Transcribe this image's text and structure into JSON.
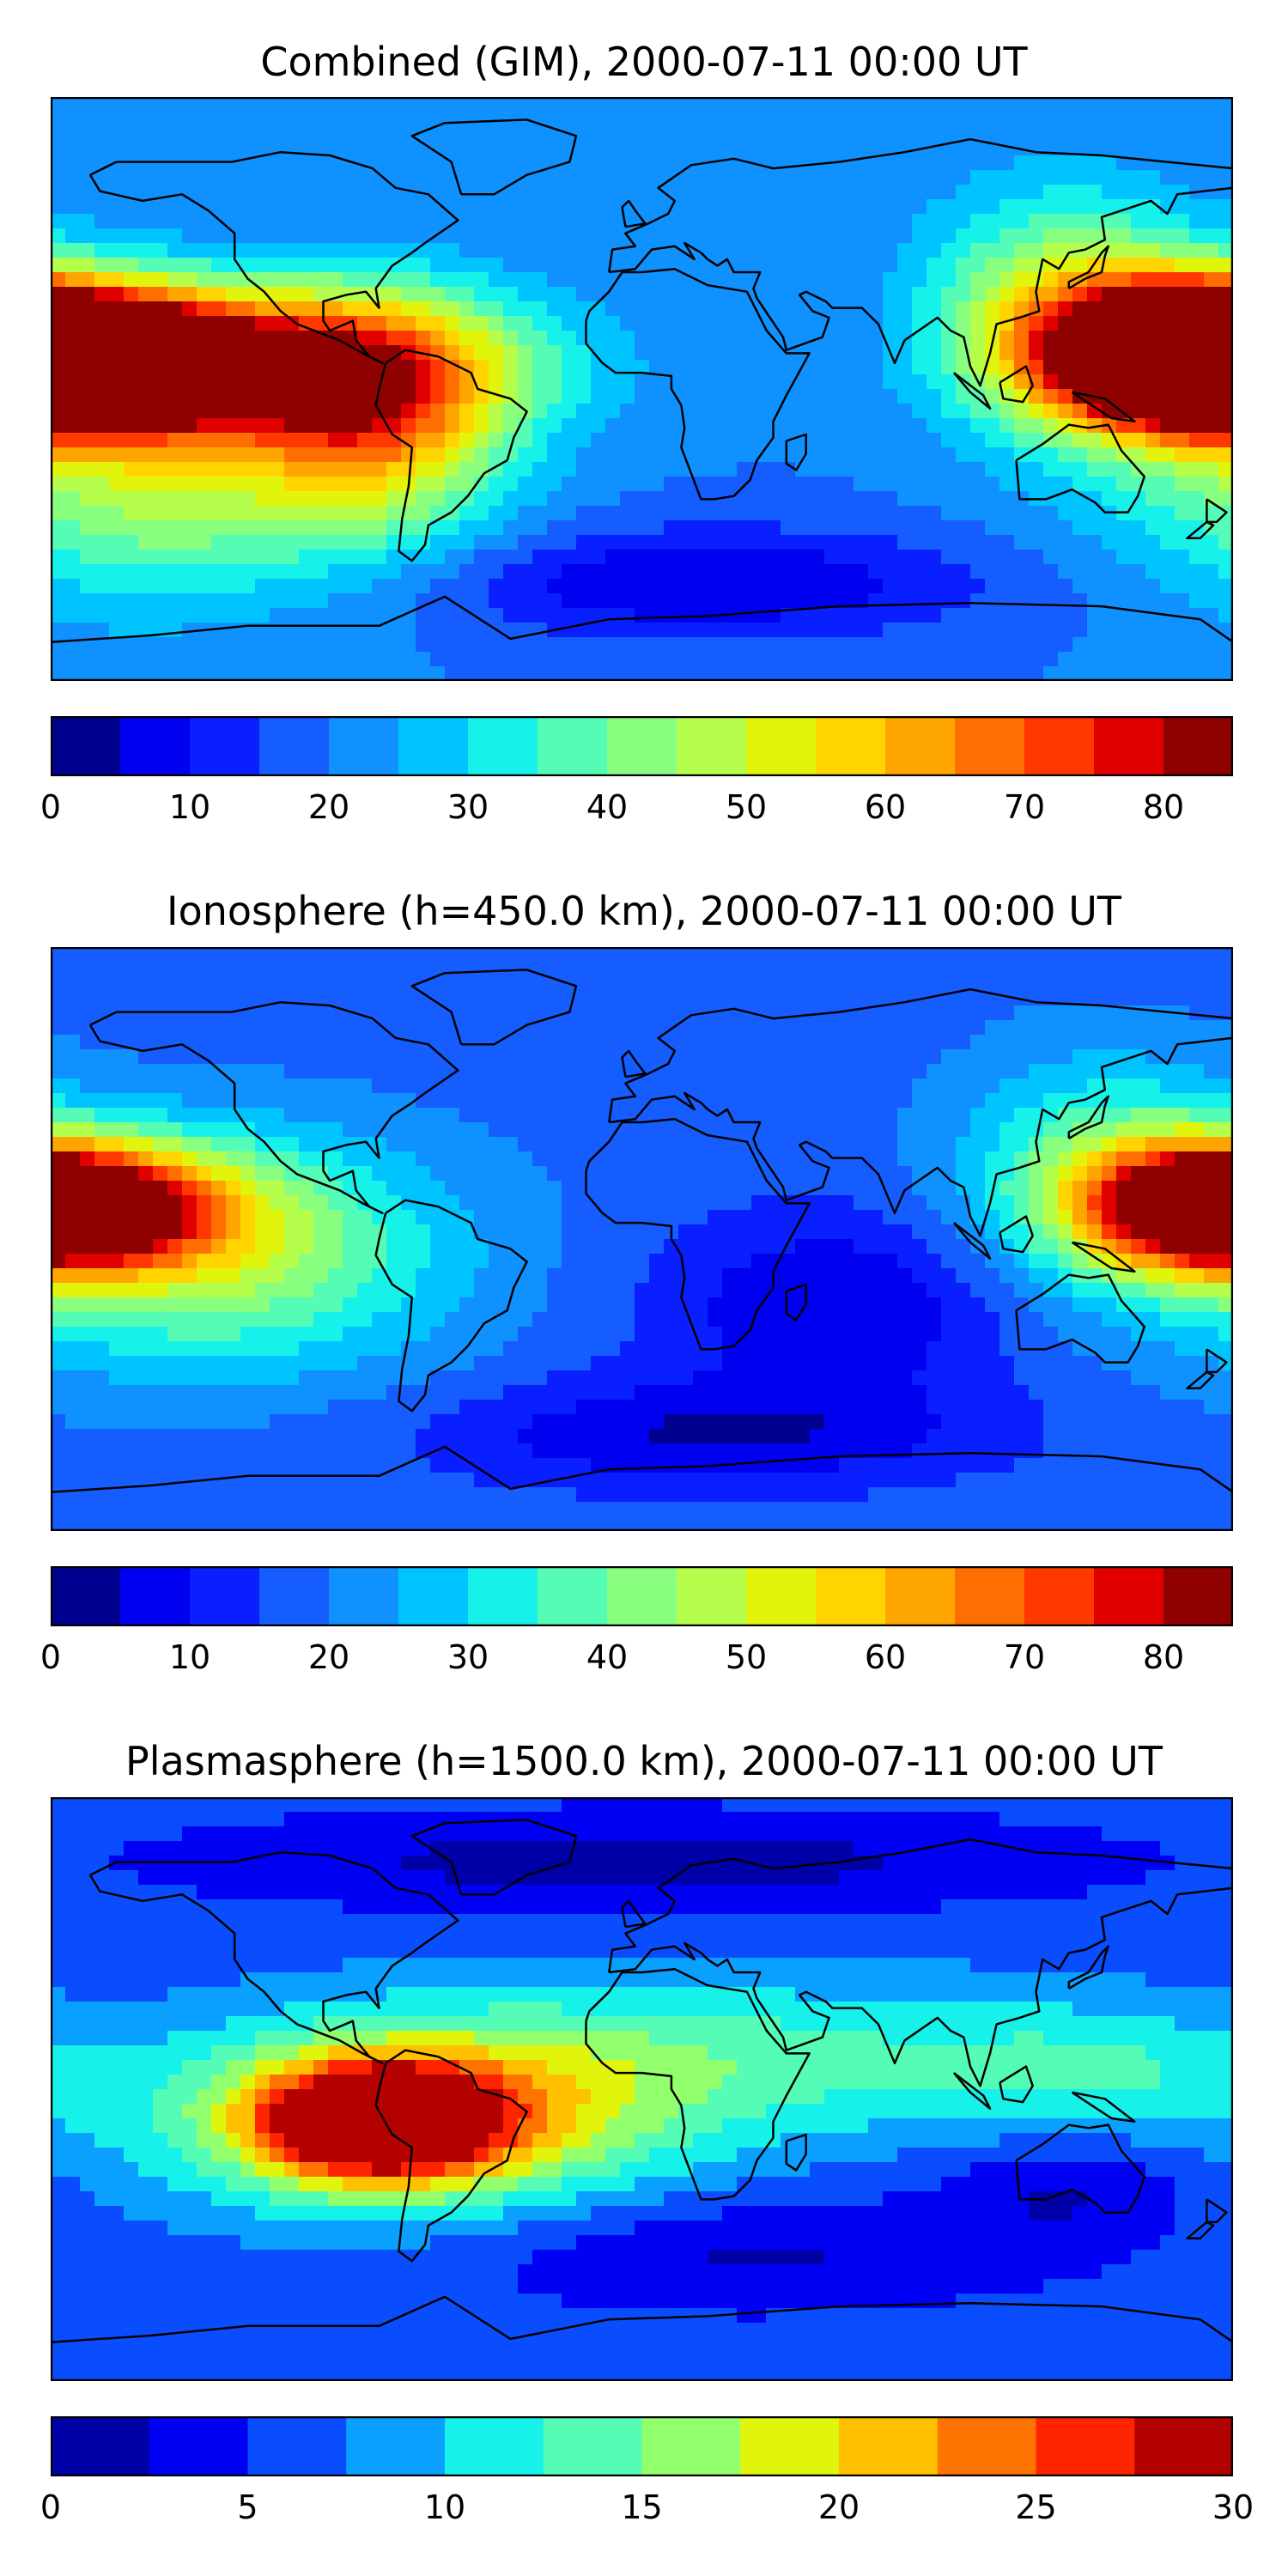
{
  "colors": {
    "jet17": [
      "#00008f",
      "#0000f0",
      "#0a1fff",
      "#155dff",
      "#0f91ff",
      "#00c4ff",
      "#16f2ea",
      "#54fcb5",
      "#88ff7f",
      "#b5ff4c",
      "#e0f50b",
      "#ffd400",
      "#ffa500",
      "#ff6e00",
      "#ff3800",
      "#e00000",
      "#8f0000"
    ],
    "jet12": [
      "#0000a8",
      "#0000f5",
      "#0a4dff",
      "#0aa0ff",
      "#16f2ea",
      "#54fcb5",
      "#92ff6c",
      "#e0f50b",
      "#ffc000",
      "#ff7400",
      "#ff2400",
      "#b30000"
    ],
    "coastline": "#000000"
  },
  "chart_data": [
    {
      "type": "heatmap",
      "title": "Combined (GIM), 2000-07-11 00:00 UT",
      "colorbar": {
        "levels": [
          0,
          5,
          10,
          15,
          20,
          25,
          30,
          35,
          40,
          45,
          50,
          55,
          60,
          65,
          70,
          75,
          80,
          85
        ],
        "tick_labels": [
          "0",
          "10",
          "20",
          "30",
          "40",
          "50",
          "60",
          "70",
          "80"
        ],
        "tick_values": [
          0,
          10,
          20,
          30,
          40,
          50,
          60,
          70,
          80
        ]
      },
      "background_level": 20,
      "features": [
        {
          "lon": -180,
          "lat": 10,
          "value": 84,
          "sx": 35,
          "sy": 14
        },
        {
          "lon": -120,
          "lat": 8,
          "value": 70,
          "sx": 55,
          "sy": 16
        },
        {
          "lon": -80,
          "lat": -10,
          "value": 55,
          "sx": 28,
          "sy": 25
        },
        {
          "lon": 170,
          "lat": 10,
          "value": 74,
          "sx": 30,
          "sy": 16
        },
        {
          "lon": 130,
          "lat": 25,
          "value": 48,
          "sx": 30,
          "sy": 25
        },
        {
          "lon": -150,
          "lat": -30,
          "value": 45,
          "sx": 45,
          "sy": 25
        },
        {
          "lon": 20,
          "lat": -60,
          "value": 5,
          "sx": 60,
          "sy": 12
        }
      ]
    },
    {
      "type": "heatmap",
      "title": "Ionosphere  (h=450.0 km), 2000-07-11 00:00 UT",
      "colorbar": {
        "levels": [
          0,
          5,
          10,
          15,
          20,
          25,
          30,
          35,
          40,
          45,
          50,
          55,
          60,
          65,
          70,
          75,
          80,
          85
        ],
        "tick_labels": [
          "0",
          "10",
          "20",
          "30",
          "40",
          "50",
          "60",
          "70",
          "80"
        ],
        "tick_values": [
          0,
          10,
          20,
          30,
          40,
          50,
          60,
          70,
          80
        ]
      },
      "background_level": 18,
      "features": [
        {
          "lon": -170,
          "lat": 10,
          "value": 62,
          "sx": 35,
          "sy": 14
        },
        {
          "lon": -130,
          "lat": -5,
          "value": 45,
          "sx": 50,
          "sy": 25
        },
        {
          "lon": 175,
          "lat": 10,
          "value": 66,
          "sx": 25,
          "sy": 13
        },
        {
          "lon": 140,
          "lat": 20,
          "value": 38,
          "sx": 30,
          "sy": 25
        },
        {
          "lon": 60,
          "lat": -20,
          "value": 5,
          "sx": 40,
          "sy": 20
        },
        {
          "lon": 20,
          "lat": -60,
          "value": 5,
          "sx": 60,
          "sy": 12
        }
      ]
    },
    {
      "type": "heatmap",
      "title": "Plasmasphere (h=1500.0 km), 2000-07-11 00:00 UT",
      "colorbar": {
        "levels": [
          0,
          2.5,
          5,
          7.5,
          10,
          12.5,
          15,
          17.5,
          20,
          22.5,
          25,
          27.5,
          30
        ],
        "tick_labels": [
          "0",
          "5",
          "10",
          "15",
          "20",
          "25",
          "30"
        ],
        "tick_values": [
          0,
          5,
          10,
          15,
          20,
          25,
          30
        ]
      },
      "background_level": 6,
      "features": [
        {
          "lon": -80,
          "lat": -10,
          "value": 29,
          "sx": 25,
          "sy": 12
        },
        {
          "lon": -70,
          "lat": -10,
          "value": 20,
          "sx": 55,
          "sy": 20
        },
        {
          "lon": 20,
          "lat": 10,
          "value": 13,
          "sx": 80,
          "sy": 18
        },
        {
          "lon": 140,
          "lat": 5,
          "value": 11,
          "sx": 40,
          "sy": 15
        },
        {
          "lon": 0,
          "lat": 70,
          "value": 1,
          "sx": 90,
          "sy": 10
        },
        {
          "lon": 30,
          "lat": -50,
          "value": 2,
          "sx": 60,
          "sy": 12
        },
        {
          "lon": 130,
          "lat": -30,
          "value": 2,
          "sx": 25,
          "sy": 12
        }
      ]
    }
  ]
}
